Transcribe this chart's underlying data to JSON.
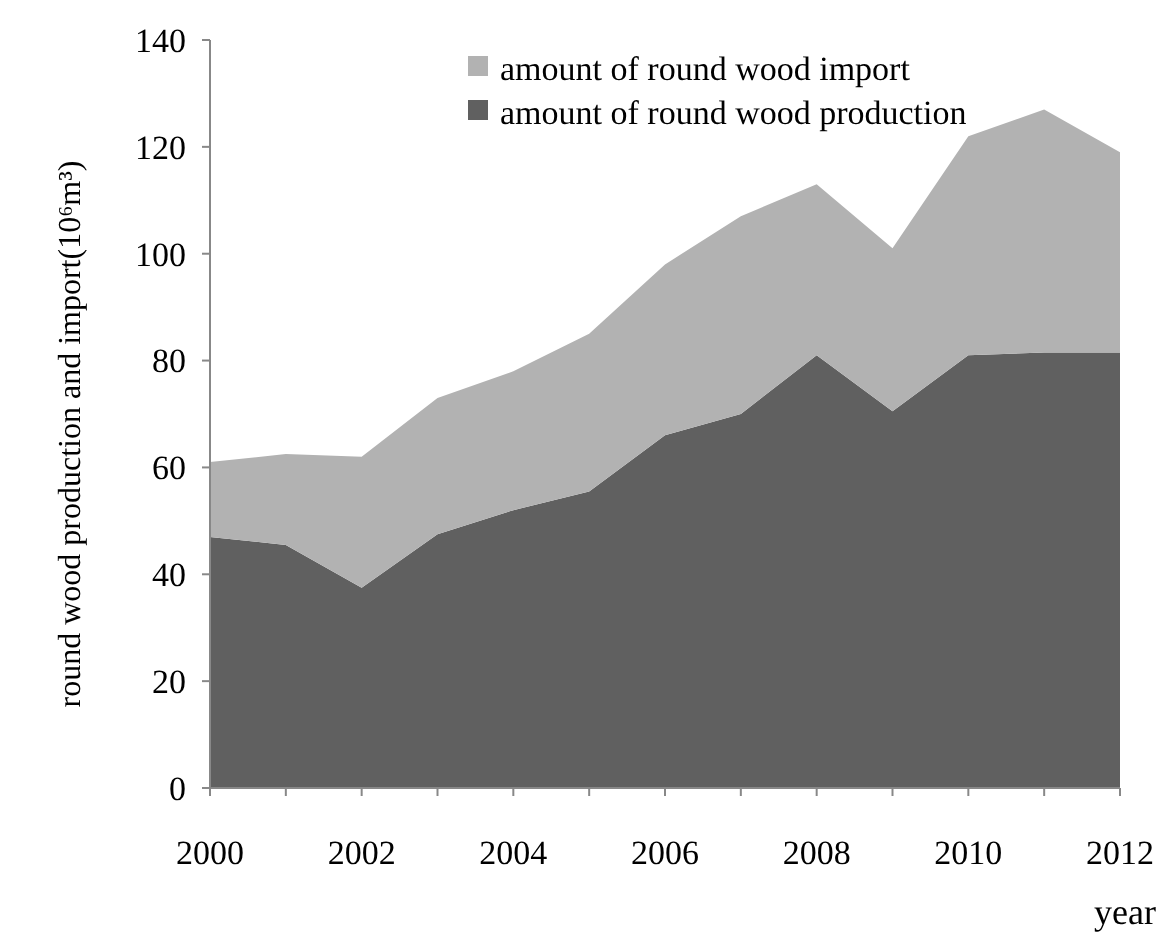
{
  "chart_data": {
    "type": "area",
    "stacked": true,
    "xlabel": "year",
    "ylabel": "round wood production and import(10⁶m³)",
    "x": [
      2000,
      2001,
      2002,
      2003,
      2004,
      2005,
      2006,
      2007,
      2008,
      2009,
      2010,
      2011,
      2012
    ],
    "series": [
      {
        "name": "amount of round wood production",
        "color": "#606060",
        "values": [
          47,
          45.5,
          37.5,
          47.5,
          52,
          55.5,
          66,
          70,
          81,
          70.5,
          81,
          81.5,
          81.5
        ]
      },
      {
        "name": "amount of round wood import",
        "color": "#b2b2b2",
        "values": [
          14,
          17,
          24.5,
          25.5,
          26,
          29.5,
          32,
          37,
          32,
          30.5,
          41,
          45.5,
          37.5
        ]
      }
    ],
    "xlim": [
      2000,
      2012
    ],
    "xticks": [
      2000,
      {
        "value": 2001,
        "label": null
      },
      2002,
      {
        "value": 2003,
        "label": null
      },
      2004,
      {
        "value": 2005,
        "label": null
      },
      2006,
      {
        "value": 2007,
        "label": null
      },
      2008,
      {
        "value": 2009,
        "label": null
      },
      2010,
      {
        "value": 2011,
        "label": null
      },
      2012
    ],
    "ylim": [
      0,
      140
    ],
    "yticks": [
      0,
      20,
      40,
      60,
      80,
      100,
      120,
      140
    ],
    "legend": "top"
  }
}
